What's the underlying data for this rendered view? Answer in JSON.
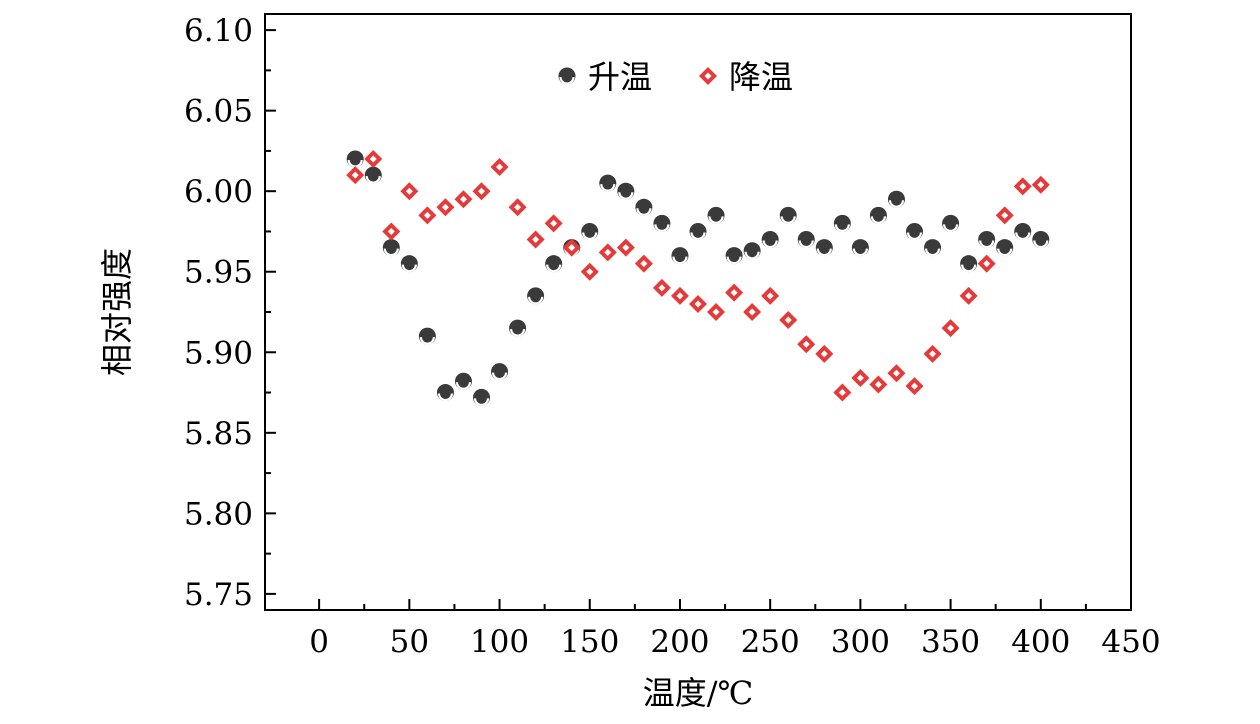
{
  "chart_data": {
    "type": "scatter",
    "title": "",
    "xlabel": "温度/℃",
    "ylabel": "相对强度",
    "xlim": [
      -30,
      450
    ],
    "ylim": [
      5.74,
      6.11
    ],
    "xticks": [
      0,
      50,
      100,
      150,
      200,
      250,
      300,
      350,
      400,
      450
    ],
    "yticks": [
      5.75,
      5.8,
      5.85,
      5.9,
      5.95,
      6.0,
      6.05,
      6.1
    ],
    "xtick_labels": [
      "0",
      "50",
      "100",
      "150",
      "200",
      "250",
      "300",
      "350",
      "400",
      "450"
    ],
    "ytick_labels": [
      "5.75",
      "5.80",
      "5.85",
      "5.90",
      "5.95",
      "6.00",
      "6.05",
      "6.10"
    ],
    "grid": false,
    "legend_position": "top-center",
    "series": [
      {
        "name": "升温",
        "marker": "circle",
        "color": "#3a3a3a",
        "x": [
          20,
          30,
          40,
          50,
          60,
          70,
          80,
          90,
          100,
          110,
          120,
          130,
          140,
          150,
          160,
          170,
          180,
          190,
          200,
          210,
          220,
          230,
          240,
          250,
          260,
          270,
          280,
          290,
          300,
          310,
          320,
          330,
          340,
          350,
          360,
          370,
          380,
          390,
          400
        ],
        "y": [
          6.02,
          6.01,
          5.965,
          5.955,
          5.91,
          5.875,
          5.882,
          5.872,
          5.888,
          5.915,
          5.935,
          5.955,
          5.965,
          5.975,
          6.005,
          6.0,
          5.99,
          5.98,
          5.96,
          5.975,
          5.985,
          5.96,
          5.963,
          5.97,
          5.985,
          5.97,
          5.965,
          5.98,
          5.965,
          5.985,
          5.995,
          5.975,
          5.965,
          5.98,
          5.955,
          5.97,
          5.965,
          5.975,
          5.97
        ]
      },
      {
        "name": "降温",
        "marker": "diamond",
        "color": "#e63a3a",
        "x": [
          20,
          30,
          40,
          50,
          60,
          70,
          80,
          90,
          100,
          110,
          120,
          130,
          140,
          150,
          160,
          170,
          180,
          190,
          200,
          210,
          220,
          230,
          240,
          250,
          260,
          270,
          280,
          290,
          300,
          310,
          320,
          330,
          340,
          350,
          360,
          370,
          380,
          390,
          400
        ],
        "y": [
          6.01,
          6.02,
          5.975,
          6.0,
          5.985,
          5.99,
          5.995,
          6.0,
          6.015,
          5.99,
          5.97,
          5.98,
          5.965,
          5.95,
          5.962,
          5.965,
          5.955,
          5.94,
          5.935,
          5.93,
          5.925,
          5.937,
          5.925,
          5.935,
          5.92,
          5.905,
          5.899,
          5.875,
          5.884,
          5.88,
          5.887,
          5.879,
          5.899,
          5.915,
          5.935,
          5.955,
          5.985,
          6.003,
          6.004
        ]
      }
    ]
  }
}
